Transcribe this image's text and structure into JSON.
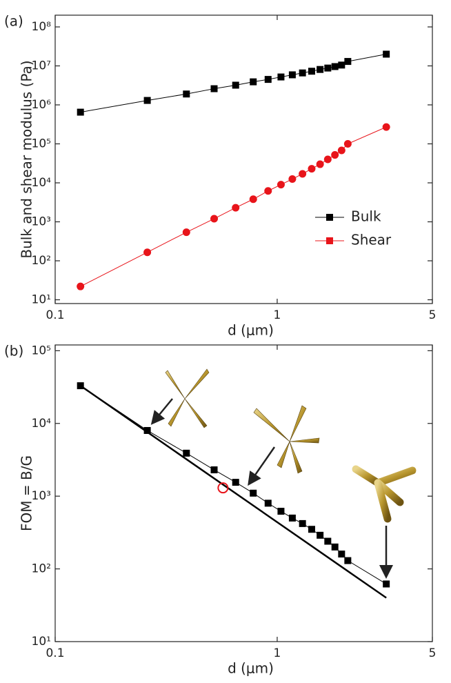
{
  "chart_data": [
    {
      "type": "line",
      "panel_label": "(a)",
      "x_label": "d (μm)",
      "y_label": "Bulk and shear modulus (Pa)",
      "xscale": "log",
      "yscale": "log",
      "xlim": [
        0.1,
        5
      ],
      "xticks": [
        0.1,
        1,
        5
      ],
      "ylim": [
        8,
        200000000
      ],
      "yticks": [
        {
          "value": 10,
          "label": "10¹"
        },
        {
          "value": 100,
          "label": "10²"
        },
        {
          "value": 1000,
          "label": "10³"
        },
        {
          "value": 10000,
          "label": "10⁴"
        },
        {
          "value": 100000,
          "label": "10⁵"
        },
        {
          "value": 1000000,
          "label": "10⁶"
        },
        {
          "value": 10000000,
          "label": "10⁷"
        },
        {
          "value": 100000000,
          "label": "10⁸"
        }
      ],
      "legend": "lower right",
      "series": [
        {
          "name": "Bulk",
          "color": "#000000",
          "marker": "square",
          "x": [
            0.13,
            0.26,
            0.39,
            0.52,
            0.65,
            0.78,
            0.91,
            1.04,
            1.17,
            1.3,
            1.43,
            1.56,
            1.69,
            1.82,
            1.95,
            2.08,
            3.1
          ],
          "values": [
            650000,
            1300000,
            1900000,
            2600000,
            3200000,
            3900000,
            4500000,
            5200000,
            5900000,
            6600000,
            7300000,
            8100000,
            8800000,
            9600000,
            10500000,
            13000000,
            20000000
          ]
        },
        {
          "name": "Shear",
          "color": "#e8141a",
          "marker": "circle",
          "x": [
            0.13,
            0.26,
            0.39,
            0.52,
            0.65,
            0.78,
            0.91,
            1.04,
            1.17,
            1.3,
            1.43,
            1.56,
            1.69,
            1.82,
            1.95,
            2.08,
            3.1
          ],
          "values": [
            22,
            165,
            540,
            1200,
            2300,
            3800,
            6200,
            9000,
            12500,
            17000,
            23000,
            30000,
            40000,
            52000,
            68000,
            100000,
            270000
          ]
        }
      ]
    },
    {
      "type": "line",
      "panel_label": "(b)",
      "x_label": "d (μm)",
      "y_label": "FOM = B/G",
      "xscale": "log",
      "yscale": "log",
      "xlim": [
        0.1,
        5
      ],
      "xticks": [
        0.1,
        1,
        5
      ],
      "ylim": [
        10,
        120000
      ],
      "yticks": [
        {
          "value": 10,
          "label": "10¹"
        },
        {
          "value": 100,
          "label": "10²"
        },
        {
          "value": 1000,
          "label": "10³"
        },
        {
          "value": 10000,
          "label": "10⁴"
        },
        {
          "value": 100000,
          "label": "10⁵"
        }
      ],
      "series": [
        {
          "color": "#000000",
          "marker": "none",
          "line_width": 2.5,
          "x": [
            0.13,
            3.1
          ],
          "values": [
            33000,
            40
          ]
        },
        {
          "color": "#000000",
          "marker": "square",
          "x": [
            0.13,
            0.26,
            0.39,
            0.52,
            0.65,
            0.78,
            0.91,
            1.04,
            1.17,
            1.3,
            1.43,
            1.56,
            1.69,
            1.82,
            1.95,
            2.08,
            3.1
          ],
          "values": [
            33000,
            8000,
            3900,
            2300,
            1550,
            1100,
            800,
            620,
            500,
            420,
            350,
            290,
            240,
            200,
            160,
            130,
            62
          ]
        },
        {
          "color": "#e8141a",
          "marker": "open-circle",
          "x": [
            0.57
          ],
          "values": [
            1300
          ]
        }
      ]
    }
  ]
}
